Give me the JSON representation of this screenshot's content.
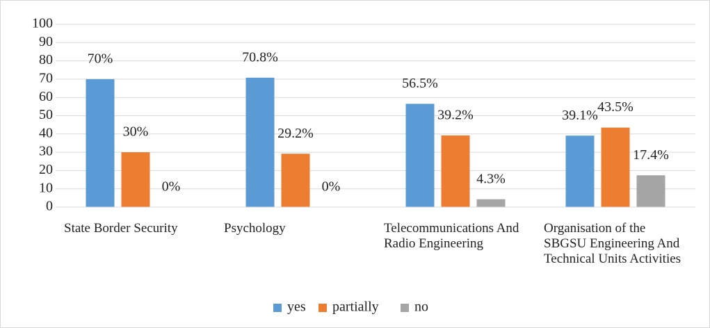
{
  "chart_data": {
    "type": "bar",
    "categories": [
      "State Border Security",
      "Psychology",
      "Telecommunications And Radio Engineering",
      "Organisation of the SBGSU Engineering And Technical Units Activities"
    ],
    "series": [
      {
        "name": "yes",
        "color": "#5b9bd5",
        "values": [
          70,
          70.8,
          56.5,
          39.1
        ],
        "value_labels": [
          "70%",
          "70.8%",
          "56.5%",
          "39.1%"
        ]
      },
      {
        "name": "partially",
        "color": "#ed7d31",
        "values": [
          30,
          29.2,
          39.2,
          43.5
        ],
        "value_labels": [
          "30%",
          "29.2%",
          "39.2%",
          "43.5%"
        ]
      },
      {
        "name": "no",
        "color": "#a5a5a5",
        "values": [
          0,
          0,
          4.3,
          17.4
        ],
        "value_labels": [
          "0%",
          "0%",
          "4.3%",
          "17.4%"
        ]
      }
    ],
    "ylim": [
      0,
      100
    ],
    "yticks": [
      0,
      10,
      20,
      30,
      40,
      50,
      60,
      70,
      80,
      90,
      100
    ],
    "grid": true,
    "legend": "bottom"
  }
}
